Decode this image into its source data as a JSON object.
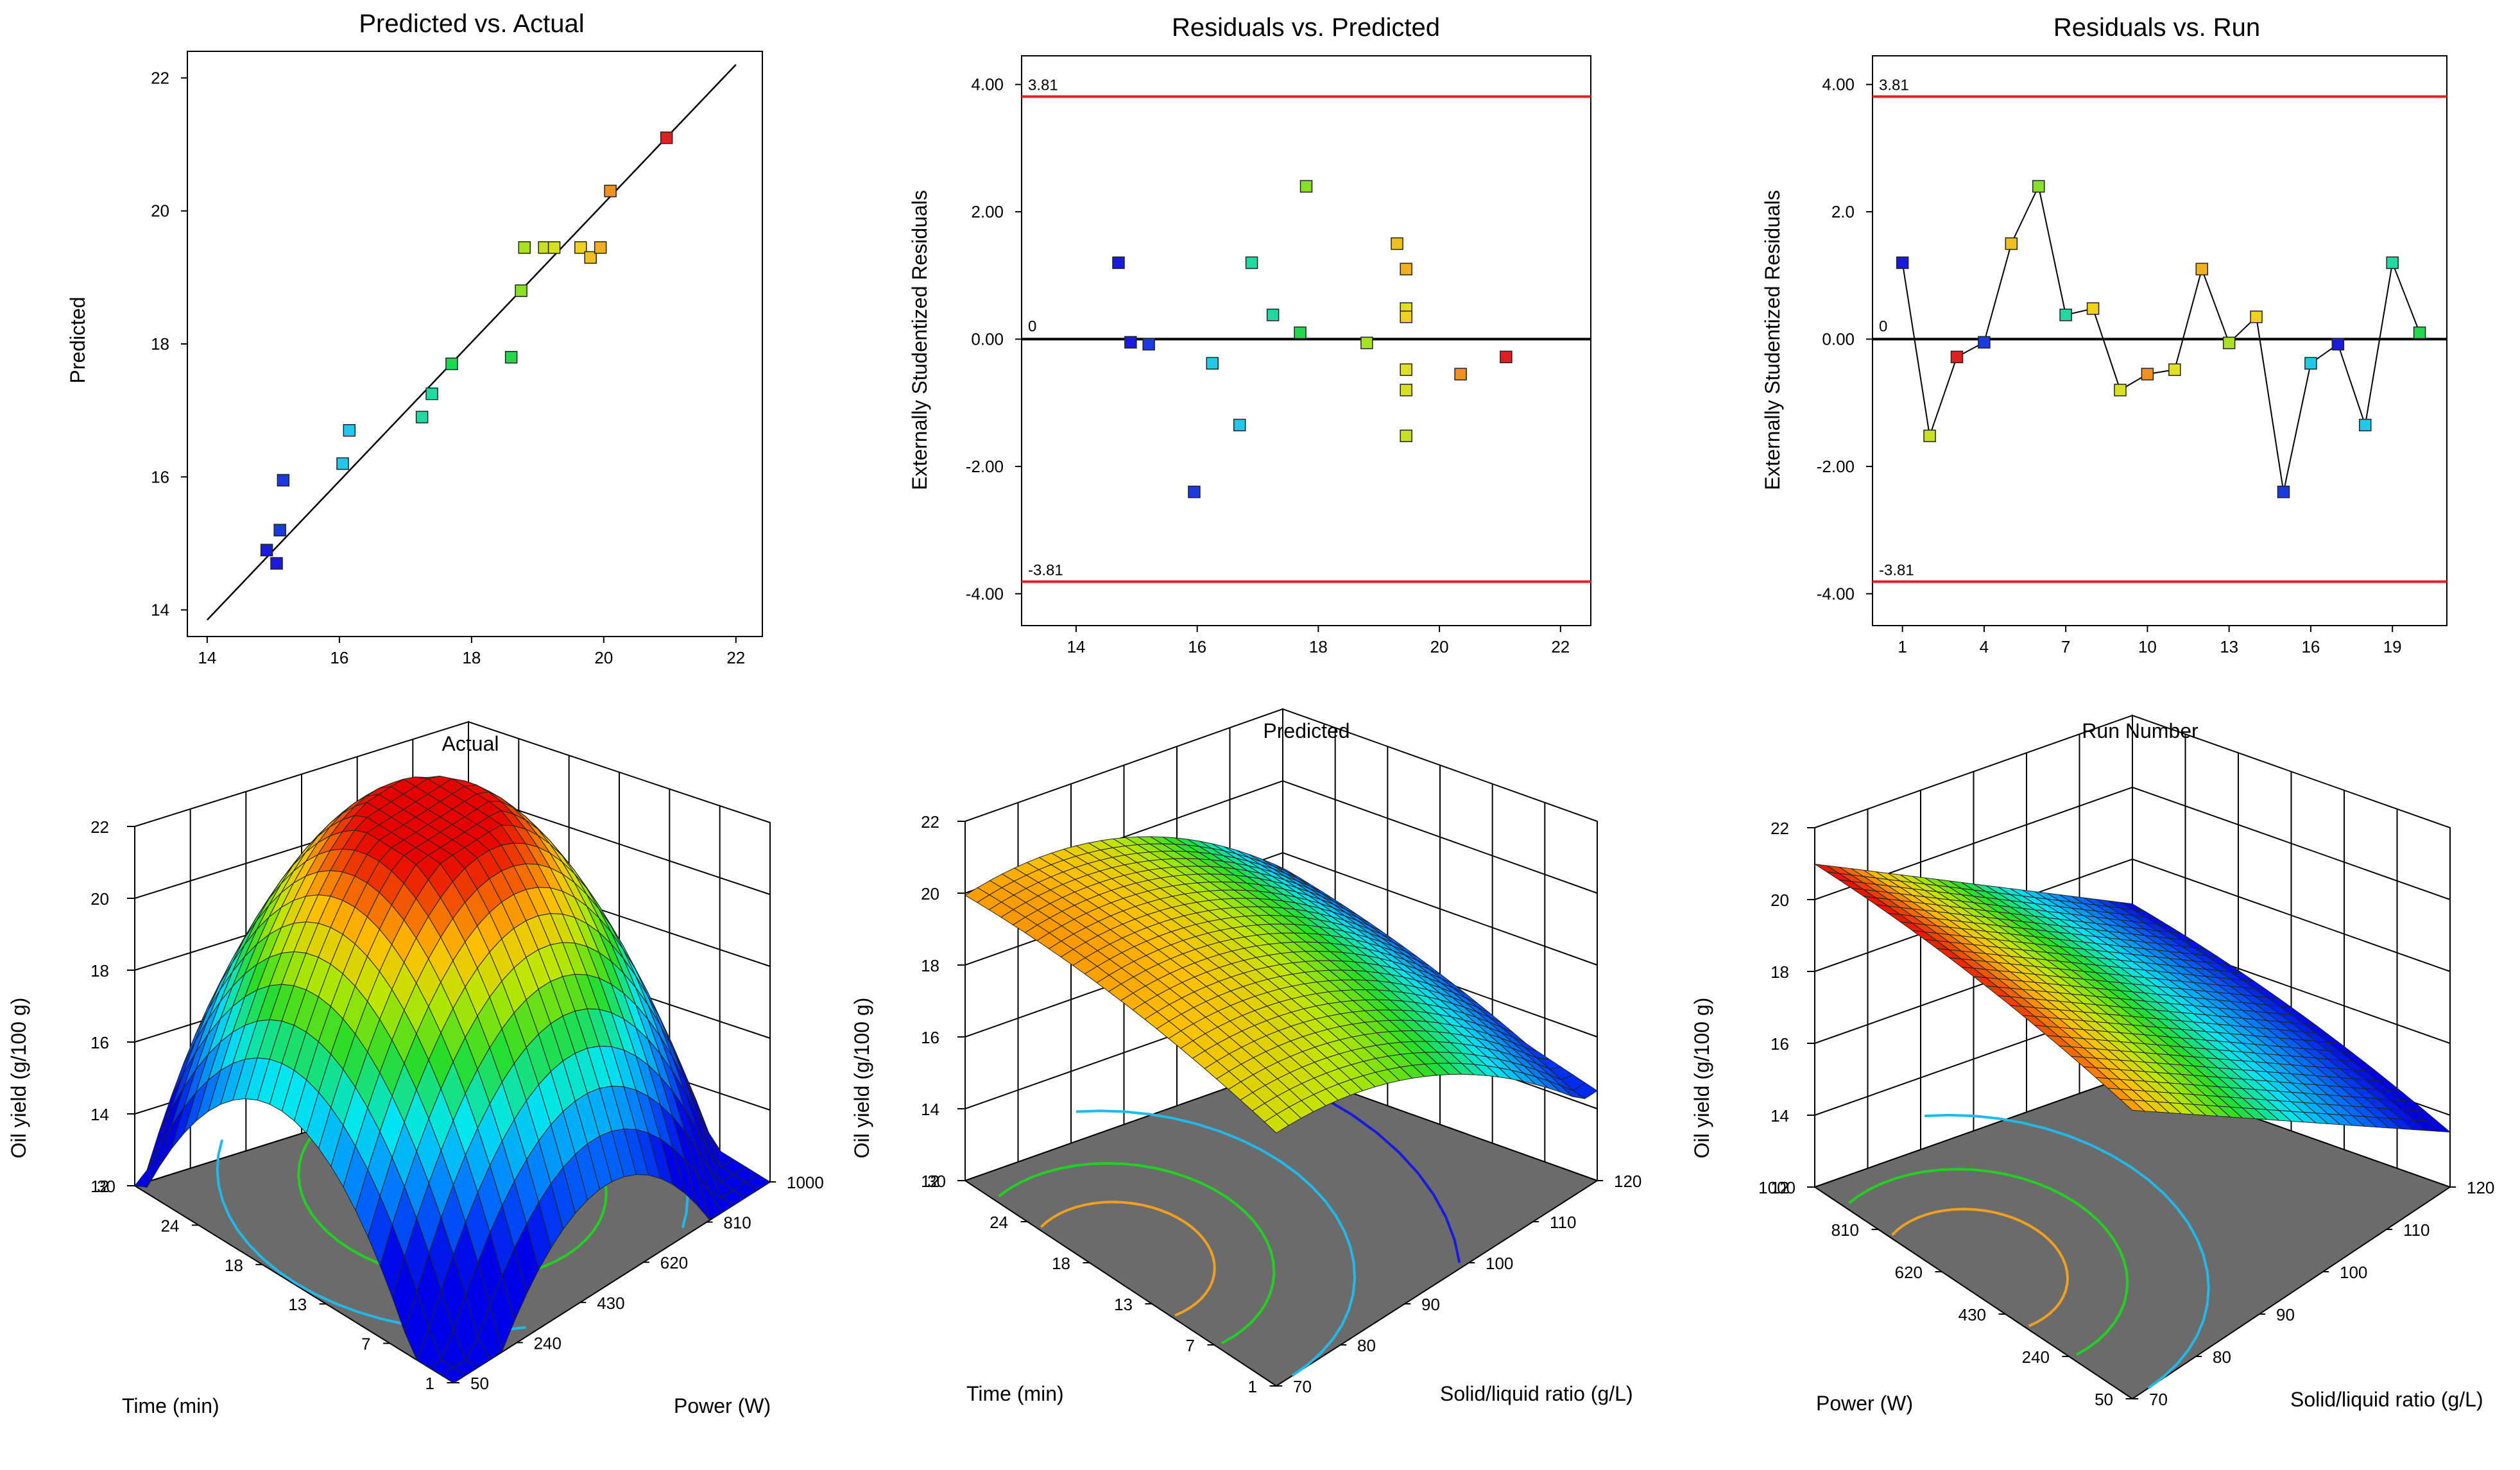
{
  "colors": {
    "reference_line": "#000000",
    "limit_line": "#dd2222",
    "floor": "#6b6b6b",
    "grid": "#000000"
  },
  "chart_data": [
    {
      "id": "pva",
      "type": "scatter",
      "title": "Predicted vs. Actual",
      "xlabel": "",
      "ylabel": "Predicted",
      "xlim": [
        13.7,
        22.4
      ],
      "ylim": [
        13.6,
        22.4
      ],
      "xticks": [
        "14",
        "16",
        "18",
        "20",
        "22"
      ],
      "yticks": [
        "14",
        "16",
        "18",
        "20",
        "22"
      ],
      "reference_line": {
        "from": [
          14.0,
          13.85
        ],
        "to": [
          22.0,
          22.2
        ]
      },
      "points": [
        {
          "x": 14.9,
          "y": 14.9,
          "c": "#1a1adc"
        },
        {
          "x": 15.05,
          "y": 14.7,
          "c": "#1a1adc"
        },
        {
          "x": 15.1,
          "y": 15.2,
          "c": "#1a3ae0"
        },
        {
          "x": 15.15,
          "y": 15.95,
          "c": "#1a3ae0"
        },
        {
          "x": 16.05,
          "y": 16.2,
          "c": "#22c8e8"
        },
        {
          "x": 16.15,
          "y": 16.7,
          "c": "#22c8e8"
        },
        {
          "x": 17.25,
          "y": 16.9,
          "c": "#22d8a0"
        },
        {
          "x": 17.4,
          "y": 17.25,
          "c": "#22d8a0"
        },
        {
          "x": 17.7,
          "y": 17.7,
          "c": "#22d850"
        },
        {
          "x": 18.6,
          "y": 17.8,
          "c": "#22d850"
        },
        {
          "x": 18.75,
          "y": 18.8,
          "c": "#88e022"
        },
        {
          "x": 18.8,
          "y": 19.45,
          "c": "#a8e022"
        },
        {
          "x": 19.1,
          "y": 19.45,
          "c": "#c8e022"
        },
        {
          "x": 19.25,
          "y": 19.45,
          "c": "#d8e022"
        },
        {
          "x": 19.65,
          "y": 19.45,
          "c": "#f0d020"
        },
        {
          "x": 19.8,
          "y": 19.3,
          "c": "#f0c020"
        },
        {
          "x": 19.95,
          "y": 19.45,
          "c": "#f0b020"
        },
        {
          "x": 20.1,
          "y": 20.3,
          "c": "#f09020"
        },
        {
          "x": 20.95,
          "y": 21.1,
          "c": "#e02020"
        }
      ]
    },
    {
      "id": "rvp",
      "type": "scatter",
      "title": "Residuals vs. Predicted",
      "xlabel": "",
      "ylabel": "Externally Studentized Residuals",
      "xlim": [
        13.1,
        22.5
      ],
      "ylim": [
        -4.5,
        4.45
      ],
      "xticks": [
        "14",
        "16",
        "18",
        "20",
        "22"
      ],
      "yticks": [
        "-4.00",
        "-2.00",
        "0.00",
        "2.00",
        "4.00"
      ],
      "limits": {
        "upper": 3.81,
        "lower": -3.81,
        "upper_label": "3.81",
        "lower_label": "-3.81",
        "zero_label": "0"
      },
      "points": [
        {
          "x": 14.7,
          "y": 1.2,
          "c": "#1a1adc"
        },
        {
          "x": 14.9,
          "y": -0.05,
          "c": "#1a1adc"
        },
        {
          "x": 15.2,
          "y": -0.08,
          "c": "#1a3ae0"
        },
        {
          "x": 15.95,
          "y": -2.4,
          "c": "#1a3ae0"
        },
        {
          "x": 16.25,
          "y": -0.38,
          "c": "#22c8e8"
        },
        {
          "x": 16.7,
          "y": -1.35,
          "c": "#22c8e8"
        },
        {
          "x": 16.9,
          "y": 1.2,
          "c": "#22d8a0"
        },
        {
          "x": 17.25,
          "y": 0.38,
          "c": "#22d8a0"
        },
        {
          "x": 17.7,
          "y": 0.1,
          "c": "#22d850"
        },
        {
          "x": 17.8,
          "y": 2.4,
          "c": "#88e022"
        },
        {
          "x": 18.8,
          "y": -0.06,
          "c": "#a8e022"
        },
        {
          "x": 19.3,
          "y": 1.5,
          "c": "#f0c020"
        },
        {
          "x": 19.45,
          "y": 1.1,
          "c": "#f0b020"
        },
        {
          "x": 19.45,
          "y": 0.48,
          "c": "#e0e020"
        },
        {
          "x": 19.45,
          "y": 0.35,
          "c": "#f0d020"
        },
        {
          "x": 19.45,
          "y": -0.48,
          "c": "#e0e020"
        },
        {
          "x": 19.45,
          "y": -0.8,
          "c": "#d8e022"
        },
        {
          "x": 19.45,
          "y": -1.52,
          "c": "#c8e022"
        },
        {
          "x": 20.35,
          "y": -0.55,
          "c": "#f09020"
        },
        {
          "x": 21.1,
          "y": -0.28,
          "c": "#e02020"
        }
      ]
    },
    {
      "id": "rvr",
      "type": "line",
      "title": "Residuals vs. Run",
      "xlabel": "",
      "ylabel": "Externally Studentized Residuals",
      "xlim": [
        -0.1,
        21.0
      ],
      "ylim": [
        -4.5,
        4.45
      ],
      "xticks": [
        "1",
        "4",
        "7",
        "10",
        "13",
        "16",
        "19"
      ],
      "yticks": [
        "-4.00",
        "-2.00",
        "0.00",
        "2.0",
        "4.00"
      ],
      "limits": {
        "upper": 3.81,
        "lower": -3.81,
        "upper_label": "3.81",
        "lower_label": "-3.81",
        "zero_label": "0"
      },
      "points": [
        {
          "x": 1,
          "y": 1.2,
          "c": "#1a1adc"
        },
        {
          "x": 2,
          "y": -1.52,
          "c": "#c8e022"
        },
        {
          "x": 3,
          "y": -0.28,
          "c": "#e02020"
        },
        {
          "x": 4,
          "y": -0.05,
          "c": "#1a3ae0"
        },
        {
          "x": 5,
          "y": 1.5,
          "c": "#f0c020"
        },
        {
          "x": 6,
          "y": 2.4,
          "c": "#88e022"
        },
        {
          "x": 7,
          "y": 0.38,
          "c": "#22d8a0"
        },
        {
          "x": 8,
          "y": 0.48,
          "c": "#f0d020"
        },
        {
          "x": 9,
          "y": -0.8,
          "c": "#d8e022"
        },
        {
          "x": 10,
          "y": -0.55,
          "c": "#f09020"
        },
        {
          "x": 11,
          "y": -0.48,
          "c": "#e0e020"
        },
        {
          "x": 12,
          "y": 1.1,
          "c": "#f0b020"
        },
        {
          "x": 13,
          "y": -0.06,
          "c": "#a8e022"
        },
        {
          "x": 14,
          "y": 0.35,
          "c": "#f0d020"
        },
        {
          "x": 15,
          "y": -2.4,
          "c": "#1a3ae0"
        },
        {
          "x": 16,
          "y": -0.38,
          "c": "#22c8e8"
        },
        {
          "x": 17,
          "y": -0.08,
          "c": "#1a1adc"
        },
        {
          "x": 18,
          "y": -1.35,
          "c": "#22c8e8"
        },
        {
          "x": 19,
          "y": 1.2,
          "c": "#22d8a0"
        },
        {
          "x": 20,
          "y": 0.1,
          "c": "#22d850"
        }
      ]
    },
    {
      "id": "s1",
      "type": "surface",
      "title": "Actual",
      "zlabel": "Oil yield (g/100 g)",
      "zticks": [
        "12",
        "14",
        "16",
        "18",
        "20",
        "22"
      ],
      "zlim": [
        12,
        22
      ],
      "color_range": [
        14,
        22
      ],
      "left_axis": {
        "label": "Time (min)",
        "ticks": [
          "1",
          "7",
          "13",
          "18",
          "24",
          "30"
        ]
      },
      "right_axis": {
        "label": "Power (W)",
        "ticks": [
          "50",
          "240",
          "430",
          "620",
          "810",
          "1000"
        ]
      },
      "surface": {
        "kind": "dome",
        "peak": 21.8,
        "corner_near": 12.5,
        "corner_left": 13.5,
        "corner_right": 15.8,
        "corner_far": 18.0
      },
      "contours": [
        {
          "level": "orange",
          "color": "#f0a020"
        },
        {
          "level": "green",
          "color": "#22d022"
        },
        {
          "level": "cyan",
          "color": "#22b8e8"
        },
        {
          "level": "blue",
          "color": "#1a1adc"
        }
      ]
    },
    {
      "id": "s2",
      "type": "surface",
      "title": "Predicted",
      "zlabel": "Oil yield (g/100 g)",
      "zticks": [
        "12",
        "14",
        "16",
        "18",
        "20",
        "22"
      ],
      "zlim": [
        12,
        22
      ],
      "color_range": [
        14,
        21
      ],
      "left_axis": {
        "label": "Time (min)",
        "ticks": [
          "1",
          "7",
          "13",
          "18",
          "24",
          "30"
        ]
      },
      "right_axis": {
        "label": "Solid/liquid ratio (g/L)",
        "ticks": [
          "70",
          "80",
          "90",
          "100",
          "110",
          "120"
        ]
      },
      "surface": {
        "kind": "ridge",
        "high_left": 20.0,
        "low_right": 15.0
      },
      "contours": [
        {
          "level": "orange",
          "color": "#f0a020"
        },
        {
          "level": "green",
          "color": "#22d022"
        },
        {
          "level": "cyan",
          "color": "#22b8e8"
        },
        {
          "level": "blue",
          "color": "#1a1adc"
        }
      ]
    },
    {
      "id": "s3",
      "type": "surface",
      "title": "Run Number",
      "zlabel": "Oil yield (g/100 g)",
      "zticks": [
        "12",
        "14",
        "16",
        "18",
        "20",
        "22"
      ],
      "zlim": [
        12,
        22
      ],
      "color_range": [
        14,
        21
      ],
      "left_axis": {
        "label": "Power (W)",
        "ticks": [
          "50",
          "240",
          "430",
          "620",
          "810",
          "1000"
        ]
      },
      "right_axis": {
        "label": "Solid/liquid ratio (g/L)",
        "ticks": [
          "70",
          "80",
          "90",
          "100",
          "110",
          "120"
        ]
      },
      "surface": {
        "kind": "slope",
        "high_left": 21.0,
        "low_right": 14.0
      },
      "contours": [
        {
          "level": "orange",
          "color": "#f0a020"
        },
        {
          "level": "green",
          "color": "#22d022"
        },
        {
          "level": "cyan",
          "color": "#22b8e8"
        }
      ]
    }
  ]
}
